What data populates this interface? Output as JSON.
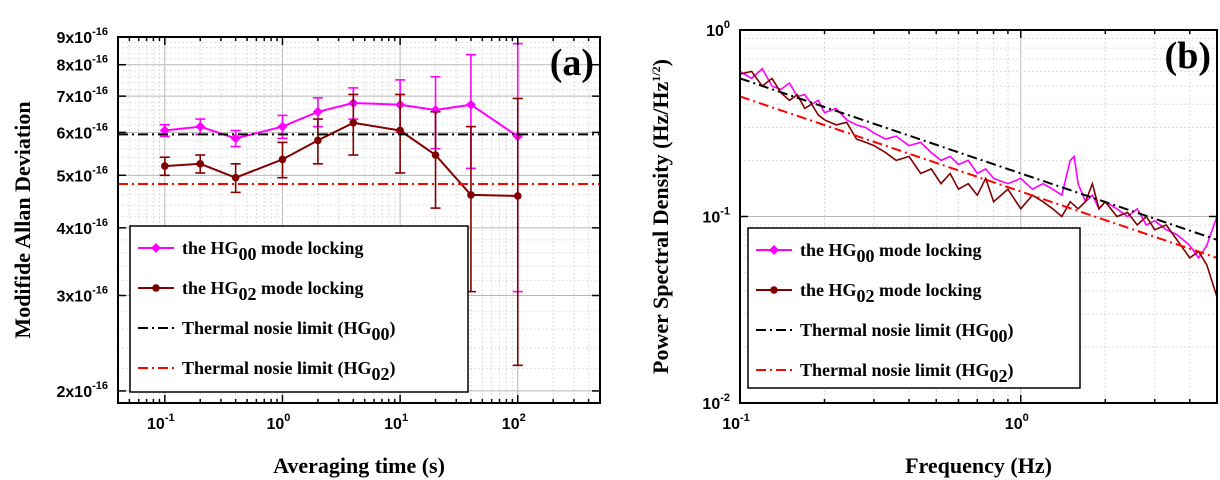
{
  "chart_data": [
    {
      "panel": "(a)",
      "type": "line",
      "xscale": "log",
      "yscale": "log",
      "xlabel": "Averaging time (s)",
      "ylabel": "Modifide Allan Deviation",
      "xlim": [
        0.04,
        500
      ],
      "ylim": [
        1.9e-16,
        9e-16
      ],
      "xticks": [
        {
          "v": 0.1,
          "base": "10",
          "exp": "-1"
        },
        {
          "v": 1,
          "base": "10",
          "exp": "0"
        },
        {
          "v": 10,
          "base": "10",
          "exp": "1"
        },
        {
          "v": 100,
          "base": "10",
          "exp": "2"
        }
      ],
      "yticks": [
        {
          "v": 2e-16,
          "mant": "2x10",
          "exp": "-16"
        },
        {
          "v": 3e-16,
          "mant": "3x10",
          "exp": "-16"
        },
        {
          "v": 4e-16,
          "mant": "4x10",
          "exp": "-16"
        },
        {
          "v": 5e-16,
          "mant": "5x10",
          "exp": "-16"
        },
        {
          "v": 6e-16,
          "mant": "6x10",
          "exp": "-16"
        },
        {
          "v": 7e-16,
          "mant": "7x10",
          "exp": "-16"
        },
        {
          "v": 8e-16,
          "mant": "8x10",
          "exp": "-16"
        },
        {
          "v": 9e-16,
          "mant": "9x10",
          "exp": "-16"
        }
      ],
      "grid": true,
      "legend_position": "bottom-left",
      "series": [
        {
          "name": "the HG00 mode locking",
          "label_main": "the HG",
          "label_sub": "00",
          "label_tail": " mode locking",
          "color": "#ff00ff",
          "marker": "diamond",
          "x": [
            0.1,
            0.2,
            0.4,
            1,
            2,
            4,
            10,
            20,
            40,
            100
          ],
          "y": [
            6.05e-16,
            6.15e-16,
            5.85e-16,
            6.15e-16,
            6.55e-16,
            6.8e-16,
            6.75e-16,
            6.6e-16,
            6.75e-16,
            5.9e-16
          ],
          "err": [
            1.5e-17,
            2e-17,
            2e-17,
            3e-17,
            4e-17,
            4.5e-17,
            7.5e-17,
            1e-16,
            1.6e-16,
            2.85e-16
          ]
        },
        {
          "name": "the HG02 mode locking",
          "label_main": "the HG",
          "label_sub": "02",
          "label_tail": " mode locking",
          "color": "#800000",
          "marker": "circle",
          "x": [
            0.1,
            0.2,
            0.4,
            1,
            2,
            4,
            10,
            20,
            40,
            100
          ],
          "y": [
            5.2e-16,
            5.25e-16,
            4.95e-16,
            5.35e-16,
            5.8e-16,
            6.25e-16,
            6.05e-16,
            5.45e-16,
            4.6e-16,
            4.58e-16
          ],
          "err": [
            2e-17,
            2e-17,
            3e-17,
            4e-17,
            5.5e-17,
            8e-17,
            1e-16,
            1.1e-16,
            1.55e-16,
            2.35e-16
          ]
        },
        {
          "name": "Thermal nosie limit (HG00)",
          "label_main": "Thermal nosie limit (HG",
          "label_sub": "00",
          "label_tail": ")",
          "color": "#000000",
          "style": "dashdot",
          "hline": 5.95e-16
        },
        {
          "name": "Thermal nosie limit (HG02)",
          "label_main": "Thermal nosie limit (HG",
          "label_sub": "02",
          "label_tail": ")",
          "color": "#ff0000",
          "style": "dashdot",
          "hline": 4.82e-16
        }
      ]
    },
    {
      "panel": "(b)",
      "type": "line",
      "xscale": "log",
      "yscale": "log",
      "xlabel": "Frequency (Hz)",
      "ylabel": "Power Spectral Density (Hz/Hz",
      "ylabel_sup": "1/2",
      "ylabel_tail": ")",
      "xlim": [
        0.1,
        5
      ],
      "ylim": [
        0.01,
        1
      ],
      "xticks": [
        {
          "v": 0.1,
          "base": "10",
          "exp": "-1"
        },
        {
          "v": 1,
          "base": "10",
          "exp": "0"
        }
      ],
      "yticks": [
        {
          "v": 0.01,
          "base": "10",
          "exp": "-2"
        },
        {
          "v": 0.1,
          "base": "10",
          "exp": "-1"
        },
        {
          "v": 1,
          "base": "10",
          "exp": "0"
        }
      ],
      "grid": true,
      "legend_position": "bottom-left",
      "series": [
        {
          "name": "the HG00 mode locking",
          "label_main": "the HG",
          "label_sub": "00",
          "label_tail": " mode locking",
          "color": "#ff00ff",
          "marker": "diamond",
          "x": [
            0.1,
            0.11,
            0.12,
            0.13,
            0.14,
            0.15,
            0.16,
            0.17,
            0.18,
            0.19,
            0.2,
            0.22,
            0.24,
            0.26,
            0.28,
            0.3,
            0.33,
            0.36,
            0.4,
            0.44,
            0.48,
            0.52,
            0.56,
            0.6,
            0.65,
            0.7,
            0.75,
            0.8,
            0.9,
            1.0,
            1.1,
            1.2,
            1.3,
            1.4,
            1.5,
            1.55,
            1.6,
            1.7,
            1.8,
            1.9,
            2.0,
            2.2,
            2.4,
            2.6,
            2.8,
            3.0,
            3.3,
            3.6,
            4.0,
            4.3,
            4.6,
            5.0
          ],
          "y": [
            0.6,
            0.55,
            0.62,
            0.5,
            0.48,
            0.52,
            0.44,
            0.45,
            0.4,
            0.42,
            0.36,
            0.38,
            0.33,
            0.31,
            0.3,
            0.28,
            0.26,
            0.27,
            0.24,
            0.25,
            0.22,
            0.2,
            0.21,
            0.19,
            0.2,
            0.17,
            0.18,
            0.16,
            0.15,
            0.16,
            0.14,
            0.15,
            0.14,
            0.13,
            0.2,
            0.21,
            0.15,
            0.12,
            0.13,
            0.11,
            0.12,
            0.11,
            0.1,
            0.11,
            0.09,
            0.095,
            0.085,
            0.08,
            0.07,
            0.06,
            0.07,
            0.1
          ]
        },
        {
          "name": "the HG02 mode locking",
          "label_main": "the HG",
          "label_sub": "02",
          "label_tail": " mode locking",
          "color": "#800000",
          "marker": "circle",
          "x": [
            0.1,
            0.11,
            0.12,
            0.13,
            0.14,
            0.15,
            0.16,
            0.17,
            0.18,
            0.19,
            0.2,
            0.22,
            0.24,
            0.26,
            0.28,
            0.3,
            0.33,
            0.36,
            0.4,
            0.44,
            0.48,
            0.52,
            0.56,
            0.6,
            0.65,
            0.7,
            0.75,
            0.8,
            0.9,
            1.0,
            1.1,
            1.2,
            1.3,
            1.4,
            1.5,
            1.6,
            1.7,
            1.8,
            1.9,
            2.0,
            2.2,
            2.4,
            2.6,
            2.8,
            3.0,
            3.3,
            3.6,
            4.0,
            4.3,
            4.6,
            5.0
          ],
          "y": [
            0.58,
            0.6,
            0.5,
            0.55,
            0.46,
            0.42,
            0.45,
            0.38,
            0.4,
            0.35,
            0.33,
            0.31,
            0.32,
            0.26,
            0.25,
            0.24,
            0.22,
            0.2,
            0.21,
            0.17,
            0.18,
            0.15,
            0.17,
            0.14,
            0.15,
            0.13,
            0.16,
            0.12,
            0.14,
            0.11,
            0.13,
            0.12,
            0.11,
            0.1,
            0.12,
            0.11,
            0.12,
            0.15,
            0.11,
            0.12,
            0.1,
            0.105,
            0.09,
            0.1,
            0.085,
            0.09,
            0.075,
            0.06,
            0.065,
            0.055,
            0.037
          ]
        },
        {
          "name": "Thermal nosie limit (HG00)",
          "label_main": "Thermal nosie limit (HG",
          "label_sub": "00",
          "label_tail": ")",
          "color": "#000000",
          "style": "dashdot",
          "x": [
            0.1,
            5
          ],
          "y": [
            0.55,
            0.075
          ]
        },
        {
          "name": "Thermal nosie limit (HG02)",
          "label_main": "Thermal nosie limit (HG",
          "label_sub": "02",
          "label_tail": ")",
          "color": "#ff0000",
          "style": "dashdot",
          "x": [
            0.1,
            5
          ],
          "y": [
            0.44,
            0.06
          ]
        }
      ]
    }
  ]
}
